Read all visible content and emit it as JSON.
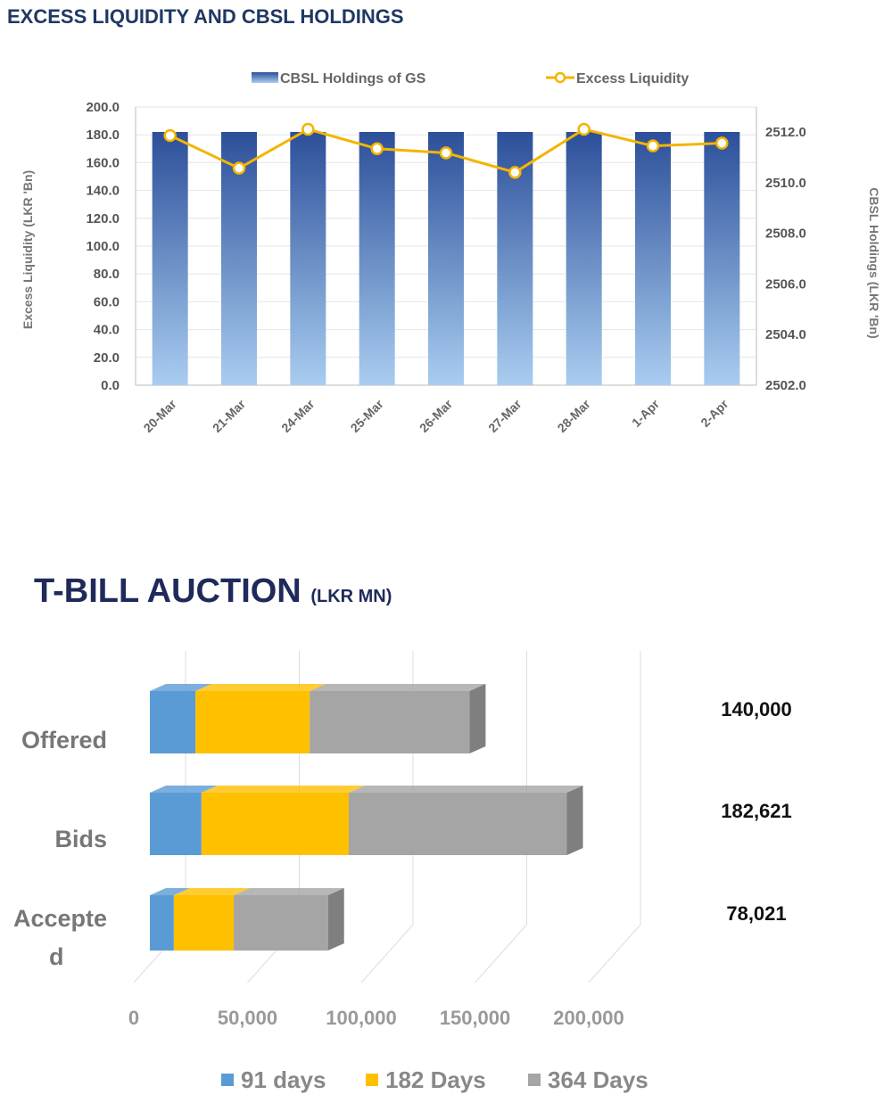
{
  "chart_data": [
    {
      "type": "bar+line",
      "title": "EXCESS LIQUIDITY AND CBSL HOLDINGS",
      "categories": [
        "20-Mar",
        "21-Mar",
        "24-Mar",
        "25-Mar",
        "26-Mar",
        "27-Mar",
        "28-Mar",
        "1-Apr",
        "2-Apr"
      ],
      "ylabel": "Excess Liquidity (LKR 'Bn)",
      "y2label": "CBSL Holdings (LKR 'Bn)",
      "ylim": [
        0,
        200
      ],
      "y2lim": [
        2502,
        2513
      ],
      "yticks": [
        "0.0",
        "20.0",
        "40.0",
        "60.0",
        "80.0",
        "100.0",
        "120.0",
        "140.0",
        "160.0",
        "180.0",
        "200.0"
      ],
      "y2ticks": [
        "2502.0",
        "2504.0",
        "2506.0",
        "2508.0",
        "2510.0",
        "2512.0"
      ],
      "legend_position": "top",
      "grid": true,
      "series": [
        {
          "name": "CBSL Holdings of GS",
          "type": "bar",
          "axis": "right",
          "color": "#2f5597",
          "values": [
            2512.0,
            2512.0,
            2512.0,
            2512.0,
            2512.0,
            2512.0,
            2512.0,
            2512.0,
            2512.0
          ]
        },
        {
          "name": "Excess Liquidity",
          "type": "line",
          "axis": "left",
          "color": "#f4b400",
          "values": [
            179.5,
            156,
            184,
            170,
            167,
            153,
            184,
            172,
            174
          ]
        }
      ]
    },
    {
      "type": "stacked-bar-horizontal",
      "title": "T-BILL AUCTION",
      "title_unit": "(LKR MN)",
      "categories": [
        "Offered",
        "Bids",
        "Accepte d"
      ],
      "xlim": [
        0,
        200000
      ],
      "xticks": [
        "0",
        "50,000",
        "100,000",
        "150,000",
        "200,000"
      ],
      "totals": [
        "140,000",
        "182,621",
        "78,021"
      ],
      "legend_position": "bottom",
      "series": [
        {
          "name": "91 days",
          "color": "#5b9bd5",
          "values": [
            20000,
            22600,
            10500
          ]
        },
        {
          "name": "182 Days",
          "color": "#ffc000",
          "values": [
            50000,
            64500,
            26200
          ]
        },
        {
          "name": "364 Days",
          "color": "#a5a5a5",
          "values": [
            70000,
            95521,
            41321
          ]
        }
      ]
    }
  ]
}
